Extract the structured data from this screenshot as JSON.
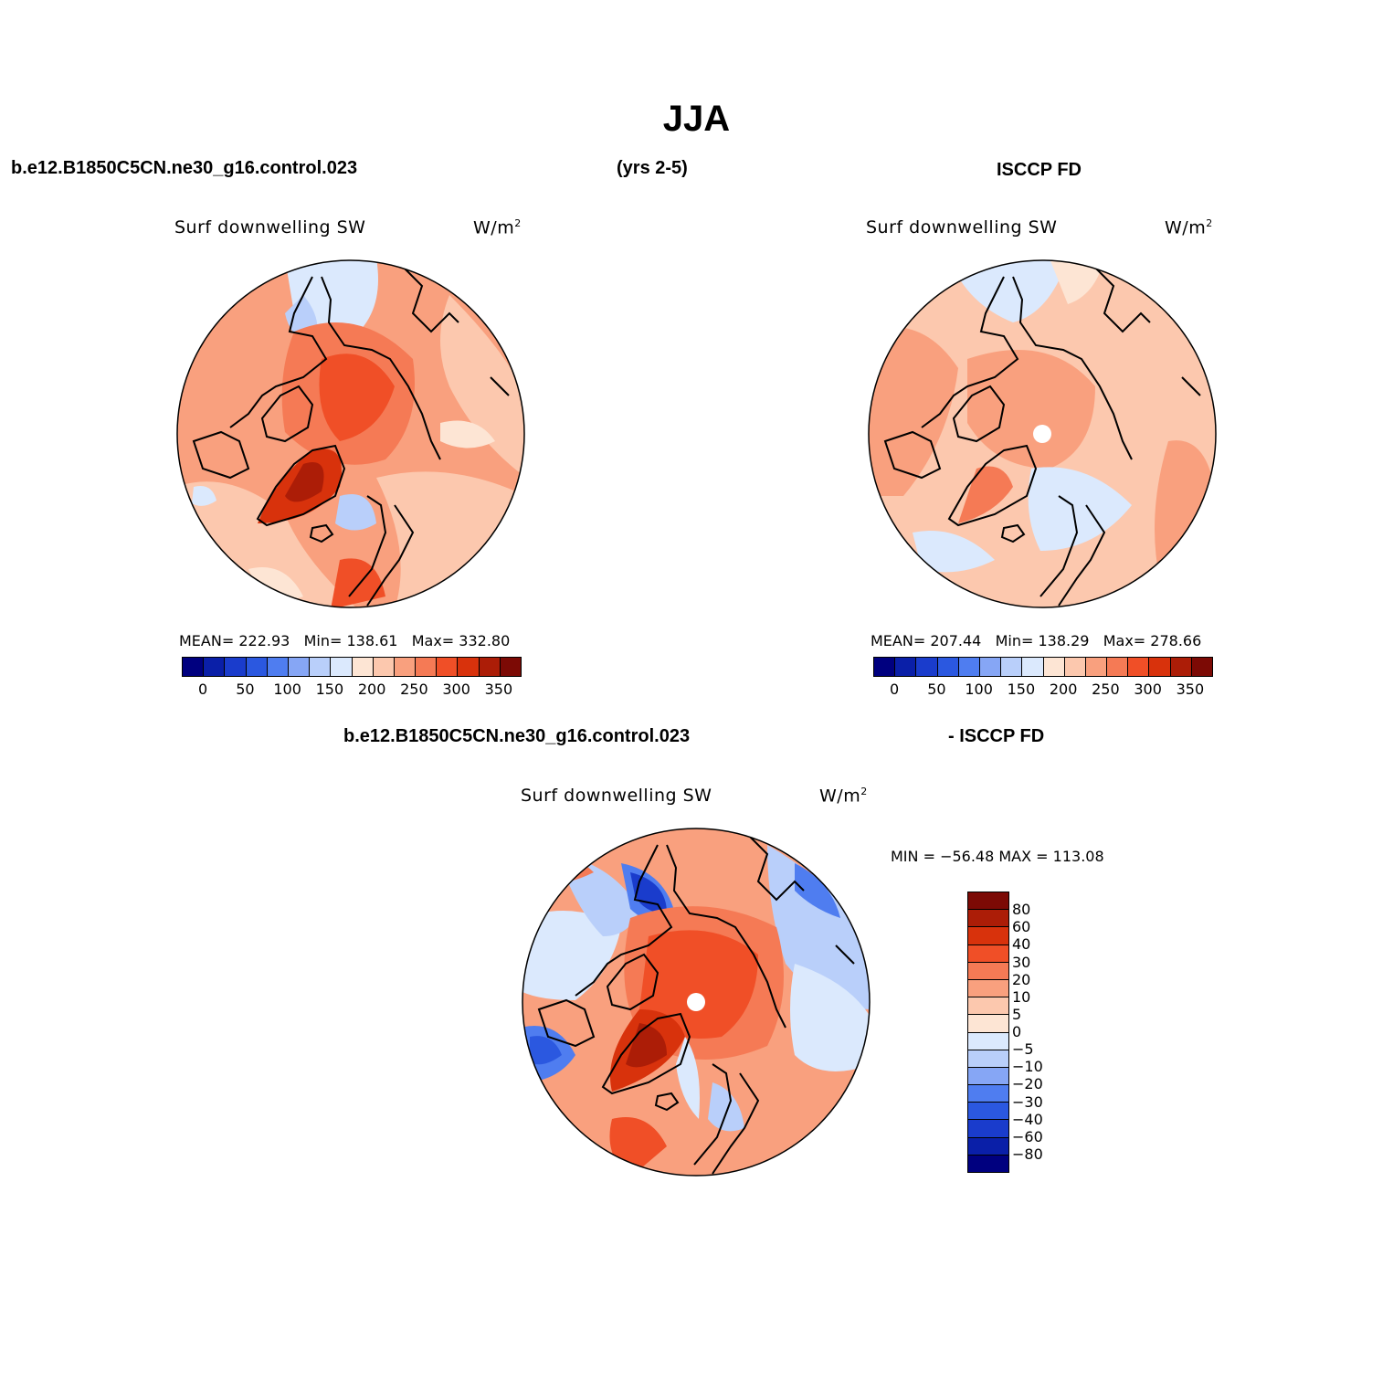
{
  "title": "JJA",
  "header": {
    "case_name": "b.e12.B1850C5CN.ne30_g16.control.023",
    "years": "(yrs 2-5)",
    "obs_name": "ISCCP FD"
  },
  "diff_header": {
    "case_name": "b.e12.B1850C5CN.ne30_g16.control.023",
    "obs_name": "- ISCCP FD"
  },
  "panels": {
    "model": {
      "variable": "Surf downwelling SW",
      "unit_base": "W/m",
      "unit_exp": "2",
      "stats": {
        "mean_label": "MEAN=",
        "mean": "222.93",
        "min_label": "Min=",
        "min": "138.61",
        "max_label": "Max=",
        "max": "332.80"
      }
    },
    "obs": {
      "variable": "Surf downwelling SW",
      "unit_base": "W/m",
      "unit_exp": "2",
      "stats": {
        "mean_label": "MEAN=",
        "mean": "207.44",
        "min_label": "Min=",
        "min": "138.29",
        "max_label": "Max=",
        "max": "278.66"
      }
    },
    "diff": {
      "variable": "Surf downwelling SW",
      "unit_base": "W/m",
      "unit_exp": "2",
      "minmax": "MIN = −56.48 MAX = 113.08"
    }
  },
  "colorbar_horizontal": {
    "labels": [
      "0",
      "50",
      "100",
      "150",
      "200",
      "250",
      "300",
      "350"
    ],
    "colors": [
      "#00007f",
      "#0a1fa8",
      "#1a3ccc",
      "#2b58e0",
      "#4f7df0",
      "#86a6f5",
      "#b9cffa",
      "#dbe9fd",
      "#fde5d4",
      "#fcc8ae",
      "#f9a07e",
      "#f57a55",
      "#f04f27",
      "#d8320c",
      "#ac1d07",
      "#7c0a05"
    ]
  },
  "colorbar_vertical": {
    "labels": [
      "80",
      "60",
      "40",
      "30",
      "20",
      "10",
      "5",
      "0",
      "−5",
      "−10",
      "−20",
      "−30",
      "−40",
      "−60",
      "−80"
    ],
    "colors_top_to_bottom": [
      "#7c0a05",
      "#ac1d07",
      "#d8320c",
      "#f04f27",
      "#f57a55",
      "#f9a07e",
      "#fcc8ae",
      "#fde5d4",
      "#dbe9fd",
      "#b9cffa",
      "#86a6f5",
      "#4f7df0",
      "#2b58e0",
      "#1a3ccc",
      "#0a1fa8",
      "#00007f"
    ]
  },
  "map_colors": {
    "dark_red": "#ac1d07",
    "red": "#d8320c",
    "red_orange": "#f04f27",
    "orange": "#f57a55",
    "salmon": "#f9a07e",
    "peach": "#fcc8ae",
    "cream": "#fde5d4",
    "pale_blue": "#dbe9fd",
    "light_blue": "#b9cffa",
    "mid_blue": "#86a6f5",
    "blue": "#4f7df0",
    "strong_blue": "#1a3ccc"
  }
}
